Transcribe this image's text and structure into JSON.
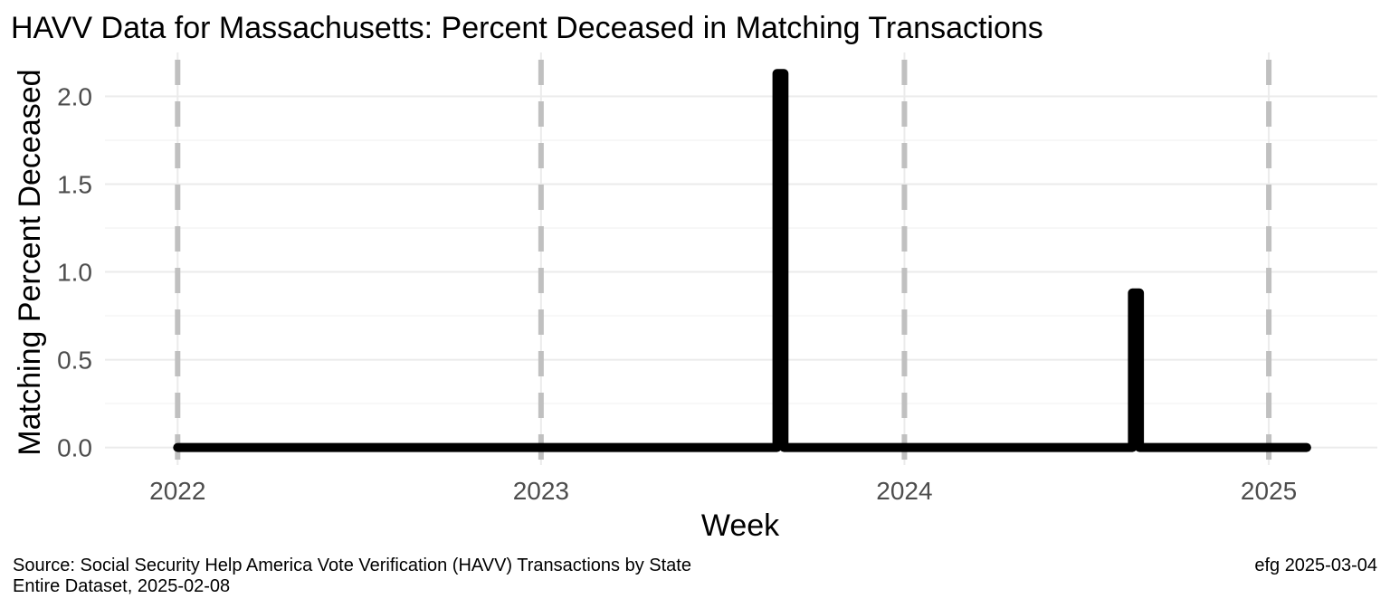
{
  "title": "HAVV Data for Massachusetts:  Percent Deceased in Matching Transactions",
  "captions": {
    "source_line1": "Source:  Social Security Help America Vote Verification (HAVV) Transactions by State",
    "source_line2": "Entire Dataset, 2025-02-08",
    "credit": "efg 2025-03-04"
  },
  "colors": {
    "line": "#000000",
    "year_markers": "#c0c0c0",
    "grid": "#ebebeb",
    "tick_text": "#4d4d4d"
  },
  "chart_data": {
    "type": "line",
    "xlabel": "Week",
    "ylabel": "Matching Percent Deceased",
    "x_type": "date",
    "xlim": [
      "2021-10-20",
      "2025-04-20"
    ],
    "ylim": [
      -0.1,
      2.25
    ],
    "x_ticks": [
      "2022",
      "2023",
      "2024",
      "2025"
    ],
    "y_ticks": [
      "0.0",
      "0.5",
      "1.0",
      "1.5",
      "2.0"
    ],
    "y_tick_values": [
      0.0,
      0.5,
      1.0,
      1.5,
      2.0
    ],
    "year_markers": [
      "2022-01-01",
      "2023-01-01",
      "2024-01-01",
      "2025-01-01"
    ],
    "grid": true,
    "series": [
      {
        "x": [
          "2022-01-01",
          "2023-08-26",
          "2023-08-26",
          "2023-09-02",
          "2023-09-02",
          "2024-08-17",
          "2024-08-17",
          "2024-08-24",
          "2024-08-24",
          "2025-02-08"
        ],
        "y": [
          0,
          0,
          2.13,
          2.13,
          0,
          0,
          0.88,
          0.88,
          0,
          0
        ]
      }
    ]
  }
}
